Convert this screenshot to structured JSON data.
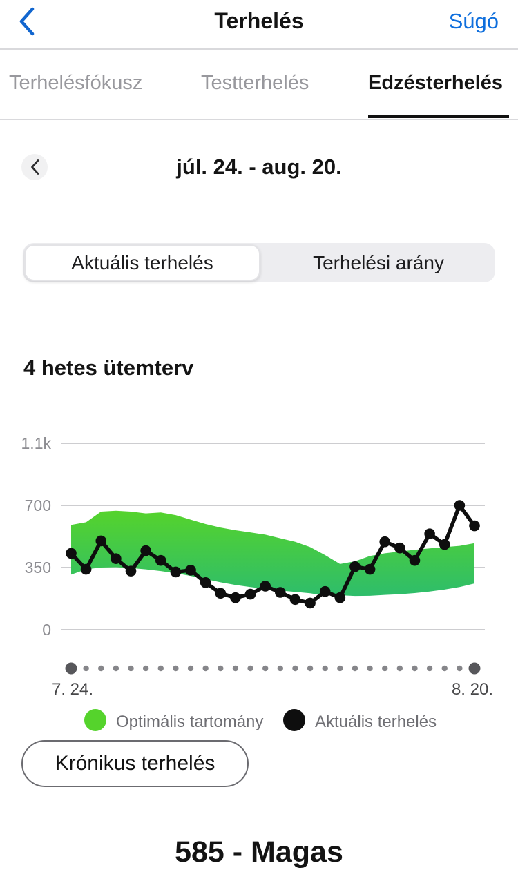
{
  "header": {
    "title": "Terhelés",
    "help_label": "Súgó"
  },
  "icons": {
    "nav_back": "chevron-left-icon",
    "period_prev": "chevron-left-icon"
  },
  "colors": {
    "accent_blue": "#0f6fdd",
    "optimal_band_top": "#55d32c",
    "optimal_band_bottom": "#2ebd6b",
    "actual_line": "#0e0e0e",
    "grid_line": "#cdcdd0"
  },
  "tabs": [
    {
      "label": "Terhelésfókusz",
      "active": false
    },
    {
      "label": "Testterhelés",
      "active": false
    },
    {
      "label": "Edzésterhelés",
      "active": true
    }
  ],
  "date_nav": {
    "range_label": "júl. 24. - aug. 20."
  },
  "segmented": {
    "options": [
      {
        "label": "Aktuális terhelés",
        "selected": true
      },
      {
        "label": "Terhelési arány",
        "selected": false
      }
    ]
  },
  "section_title": "4 hetes ütemterv",
  "chart_data": {
    "type": "area",
    "title": "4 hetes ütemterv",
    "days": 28,
    "x_start_label": "7. 24.",
    "x_end_label": "8. 20.",
    "y_ticks": [
      "0",
      "350",
      "700",
      "1.1k"
    ],
    "y_tick_values": [
      0,
      350,
      700,
      1050
    ],
    "ylim": [
      0,
      1050
    ],
    "grid": true,
    "legend_position": "bottom",
    "series": [
      {
        "name": "Optimális tartomány",
        "type": "band",
        "color_top": "#55d32c",
        "color_bottom": "#2ebd6b",
        "upper": [
          590,
          605,
          665,
          670,
          665,
          655,
          660,
          645,
          620,
          595,
          575,
          560,
          548,
          535,
          515,
          495,
          465,
          420,
          370,
          385,
          415,
          430,
          440,
          450,
          458,
          465,
          472,
          487
        ],
        "lower": [
          310,
          340,
          350,
          352,
          347,
          340,
          330,
          318,
          303,
          285,
          267,
          252,
          240,
          230,
          220,
          213,
          205,
          192,
          194,
          190,
          191,
          196,
          200,
          206,
          215,
          226,
          240,
          260
        ]
      },
      {
        "name": "Aktuális terhelés",
        "type": "line",
        "color": "#0e0e0e",
        "values": [
          430,
          340,
          500,
          400,
          330,
          445,
          390,
          325,
          335,
          265,
          205,
          180,
          200,
          245,
          210,
          170,
          150,
          215,
          180,
          355,
          340,
          495,
          460,
          390,
          540,
          480,
          700,
          585
        ]
      }
    ],
    "scrubber": {
      "dot_color": "#86868a",
      "endpoint_color": "#57575b"
    }
  },
  "chronic_button": {
    "label": "Krónikus terhelés"
  },
  "summary": {
    "value_label": "585 - Magas"
  }
}
